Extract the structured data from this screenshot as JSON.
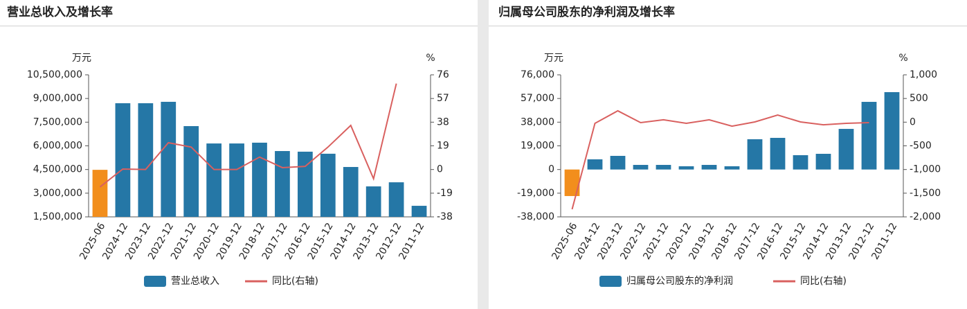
{
  "chart_data": [
    {
      "type": "bar_line",
      "title": "营业总收入及增长率",
      "y_unit": "万元",
      "y2_unit": "%",
      "categories": [
        "2025-06",
        "2024-12",
        "2023-12",
        "2022-12",
        "2021-12",
        "2020-12",
        "2019-12",
        "2018-12",
        "2017-12",
        "2016-12",
        "2015-12",
        "2014-12",
        "2013-12",
        "2012-12",
        "2011-12"
      ],
      "series": [
        {
          "name": "营业总收入",
          "type": "bar",
          "color": "#2577a6",
          "point_colors": [
            "#f28e1c",
            "#2577a6",
            "#2577a6",
            "#2577a6",
            "#2577a6",
            "#2577a6",
            "#2577a6",
            "#2577a6",
            "#2577a6",
            "#2577a6",
            "#2577a6",
            "#2577a6",
            "#2577a6",
            "#2577a6",
            "#2577a6"
          ],
          "values": [
            4480000,
            8700000,
            8700000,
            8790000,
            7250000,
            6150000,
            6150000,
            6200000,
            5670000,
            5630000,
            5500000,
            4660000,
            3430000,
            3690000,
            2200000
          ]
        },
        {
          "name": "同比(右轴)",
          "type": "line",
          "axis": "y2",
          "color": "#d9605f",
          "values": [
            -14,
            0.4,
            0,
            21.5,
            18,
            0,
            0,
            10,
            1.5,
            2.5,
            18,
            35.4,
            -7.4,
            69,
            null
          ]
        }
      ],
      "ylim": [
        1500000,
        10500000
      ],
      "yticks": [
        {
          "value": 1500000,
          "label": "1,500,000"
        },
        {
          "value": 3000000,
          "label": "3,000,000"
        },
        {
          "value": 4500000,
          "label": "4,500,000"
        },
        {
          "value": 6000000,
          "label": "6,000,000"
        },
        {
          "value": 7500000,
          "label": "7,500,000"
        },
        {
          "value": 9000000,
          "label": "9,000,000"
        },
        {
          "value": 10500000,
          "label": "10,500,000"
        }
      ],
      "y2lim": [
        -38,
        76
      ],
      "y2ticks": [
        -38,
        -19,
        0,
        19,
        38,
        57,
        76
      ],
      "legend": "bottom"
    },
    {
      "type": "bar_line",
      "title": "归属母公司股东的净利润及增长率",
      "y_unit": "万元",
      "y2_unit": "%",
      "categories": [
        "2025-06",
        "2024-12",
        "2023-12",
        "2022-12",
        "2021-12",
        "2020-12",
        "2019-12",
        "2018-12",
        "2017-12",
        "2016-12",
        "2015-12",
        "2014-12",
        "2013-12",
        "2012-12",
        "2011-12"
      ],
      "series": [
        {
          "name": "归属母公司股东的净利润",
          "type": "bar",
          "color": "#2577a6",
          "point_colors": [
            "#f28e1c",
            "#2577a6",
            "#2577a6",
            "#2577a6",
            "#2577a6",
            "#2577a6",
            "#2577a6",
            "#2577a6",
            "#2577a6",
            "#2577a6",
            "#2577a6",
            "#2577a6",
            "#2577a6",
            "#2577a6",
            "#2577a6"
          ],
          "values": [
            -21300,
            8170,
            10950,
            3700,
            3700,
            2600,
            3700,
            2600,
            24300,
            25400,
            11500,
            12600,
            32600,
            54300,
            62100
          ]
        },
        {
          "name": "同比(右轴)",
          "type": "line",
          "axis": "y2",
          "color": "#d9605f",
          "values": [
            -1840,
            -25,
            240,
            -10,
            50,
            -25,
            50,
            -85,
            5,
            150,
            5,
            -55,
            -25,
            -10,
            null
          ]
        }
      ],
      "ylim": [
        -38000,
        76000
      ],
      "yticks": [
        {
          "value": -38000,
          "label": "-38,000"
        },
        {
          "value": -19000,
          "label": "-19,000"
        },
        0,
        {
          "value": 19000,
          "label": "19,000"
        },
        {
          "value": 38000,
          "label": "38,000"
        },
        {
          "value": 57000,
          "label": "57,000"
        },
        {
          "value": 76000,
          "label": "76,000"
        }
      ],
      "y2lim": [
        -2000,
        1000
      ],
      "y2ticks": [
        {
          "value": -2000,
          "label": "-2,000"
        },
        {
          "value": -1500,
          "label": "-1,500"
        },
        {
          "value": -1000,
          "label": "-1,000"
        },
        -500,
        0,
        500,
        {
          "value": 1000,
          "label": "1,000"
        }
      ],
      "legend": "bottom"
    }
  ]
}
